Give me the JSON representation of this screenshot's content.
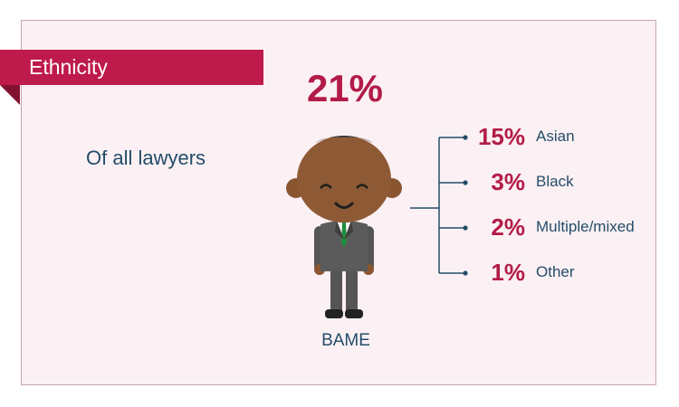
{
  "header": {
    "title": "Ethnicity"
  },
  "total": {
    "value": "21%",
    "caption": "Of all lawyers",
    "group": "BAME"
  },
  "colors": {
    "accent": "#be1a4b",
    "text": "#234d6a",
    "panel": "#fbf0f3",
    "bracket": "#234d6a"
  },
  "icons": {
    "figure": "smiling-lawyer-icon"
  },
  "chart_data": {
    "type": "table",
    "title": "21%",
    "categories": [
      "Asian",
      "Black",
      "Multiple/mixed",
      "Other"
    ],
    "values": [
      15,
      3,
      2,
      1
    ],
    "labels": [
      "15%",
      "3%",
      "2%",
      "1%"
    ],
    "total": 21
  }
}
